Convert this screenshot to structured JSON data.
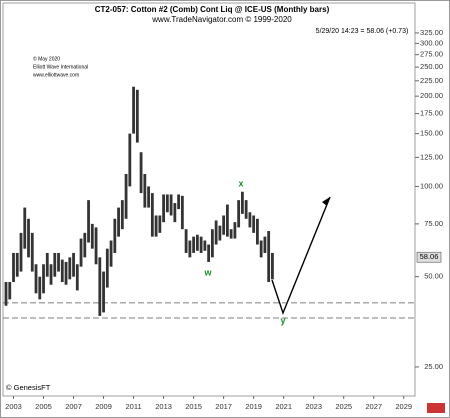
{
  "chart_data": {
    "type": "range_bar",
    "title": "CT2-057:  Cotton #2 (Comb) Cont Liq @ ICE-US  (Monthly bars)",
    "subtitle": "www.TradeNavigator.com © 1999-2020",
    "quote": "5/29/20 14:23 = 58.06 (+0.73)",
    "copyright": [
      "© May 2020",
      "Elliott Wave International",
      "www.elliottwave.com"
    ],
    "footer": "© GenesisFT",
    "wave_labels": [
      "w",
      "x",
      "y"
    ],
    "last_value": 58.06,
    "color": "#333333",
    "log_scale": true,
    "x": [
      2002.5,
      2002.75,
      2003.0,
      2003.25,
      2003.5,
      2003.75,
      2004.0,
      2004.25,
      2004.5,
      2004.75,
      2005.0,
      2005.25,
      2005.5,
      2005.75,
      2006.0,
      2006.25,
      2006.5,
      2006.75,
      2007.0,
      2007.25,
      2007.5,
      2007.75,
      2008.0,
      2008.25,
      2008.5,
      2008.75,
      2009.0,
      2009.25,
      2009.5,
      2009.75,
      2010.0,
      2010.25,
      2010.5,
      2010.75,
      2011.0,
      2011.25,
      2011.5,
      2011.75,
      2012.0,
      2012.25,
      2012.5,
      2012.75,
      2013.0,
      2013.25,
      2013.5,
      2013.75,
      2014.0,
      2014.25,
      2014.5,
      2014.75,
      2015.0,
      2015.25,
      2015.5,
      2015.75,
      2016.0,
      2016.25,
      2016.5,
      2016.75,
      2017.0,
      2017.25,
      2017.5,
      2017.75,
      2018.0,
      2018.25,
      2018.5,
      2018.75,
      2019.0,
      2019.25,
      2019.5,
      2019.75,
      2020.0,
      2020.25
    ],
    "high": [
      48,
      48,
      60,
      60,
      70,
      85,
      78,
      70,
      55,
      50,
      55,
      60,
      55,
      60,
      60,
      57,
      56,
      58,
      60,
      55,
      67,
      70,
      90,
      75,
      73,
      58,
      52,
      62,
      66,
      78,
      85,
      90,
      110,
      150,
      215,
      210,
      130,
      110,
      100,
      95,
      80,
      80,
      94,
      94,
      94,
      88,
      94,
      93,
      72,
      66,
      68,
      69,
      68,
      66,
      64,
      72,
      77,
      74,
      80,
      87,
      72,
      76,
      90,
      96,
      90,
      82,
      80,
      78,
      66,
      68,
      71,
      60
    ],
    "low": [
      40,
      42,
      48,
      50,
      52,
      62,
      58,
      52,
      44,
      42,
      44,
      50,
      47,
      50,
      52,
      48,
      47,
      49,
      50,
      45,
      54,
      58,
      65,
      62,
      55,
      37,
      38,
      46,
      54,
      60,
      68,
      72,
      78,
      100,
      150,
      140,
      95,
      85,
      85,
      68,
      68,
      70,
      76,
      82,
      80,
      76,
      84,
      72,
      60,
      58,
      60,
      61,
      60,
      61,
      56,
      58,
      64,
      66,
      69,
      68,
      67,
      67,
      73,
      81,
      78,
      73,
      70,
      64,
      58,
      60,
      48,
      49
    ],
    "reference_lines": [
      40.9,
      36.4
    ],
    "xlim": [
      2002.3,
      2029.75
    ],
    "xticks": [
      2003,
      2005,
      2007,
      2009,
      2011,
      2013,
      2015,
      2017,
      2019,
      2021,
      2023,
      2025,
      2027,
      2029
    ],
    "ylim": [
      20,
      409
    ],
    "yticks": [
      {
        "value": 25,
        "label": "25.00"
      },
      {
        "value": 50,
        "label": "50.00"
      },
      {
        "value": 75,
        "label": "75.00"
      },
      {
        "value": 100,
        "label": "100.00"
      },
      {
        "value": 125,
        "label": "125.00"
      },
      {
        "value": 150,
        "label": "150.00"
      },
      {
        "value": 175,
        "label": "175.00"
      },
      {
        "value": 200,
        "label": "200.00"
      },
      {
        "value": 225,
        "label": "225.00"
      },
      {
        "value": 250,
        "label": "250.00"
      },
      {
        "value": 275,
        "label": "275.00"
      },
      {
        "value": 300,
        "label": "300.00"
      },
      {
        "value": 325,
        "label": "325.00"
      }
    ]
  }
}
